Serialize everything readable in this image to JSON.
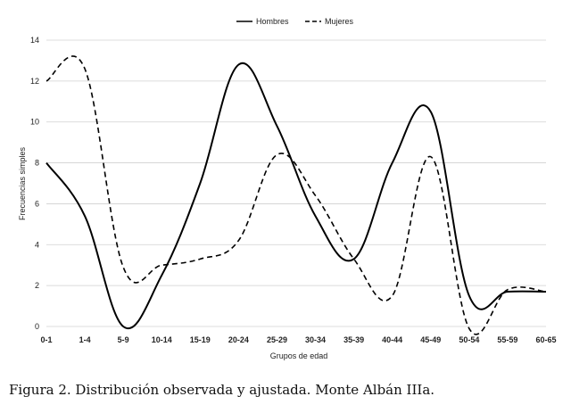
{
  "caption": "Figura 2. Distribución observada y ajustada. Monte Albán IIIa.",
  "chart_data": {
    "type": "line",
    "title": "",
    "xlabel": "Grupos de edad",
    "ylabel": "Frecuencias simples",
    "ylim": [
      0,
      14
    ],
    "yticks": [
      0,
      2,
      4,
      6,
      8,
      10,
      12,
      14
    ],
    "grid": true,
    "legend_position": "top-center",
    "categories": [
      "0-1",
      "1-4",
      "5-9",
      "10-14",
      "15-19",
      "20-24",
      "25-29",
      "30-34",
      "35-39",
      "40-44",
      "45-49",
      "50-54",
      "55-59",
      "60-65"
    ],
    "series": [
      {
        "name": "Hombres",
        "style": "solid",
        "color": "#000000",
        "values": [
          8,
          5.4,
          0,
          2.5,
          7,
          12.8,
          9.8,
          5.4,
          3.3,
          8,
          10.5,
          1.5,
          1.7,
          1.7
        ]
      },
      {
        "name": "Mujeres",
        "style": "dashed",
        "color": "#000000",
        "values": [
          12,
          12.6,
          2.9,
          3,
          3.3,
          4.2,
          8.4,
          6.4,
          3.3,
          1.5,
          8.3,
          -0.1,
          1.8,
          1.7
        ]
      }
    ]
  }
}
